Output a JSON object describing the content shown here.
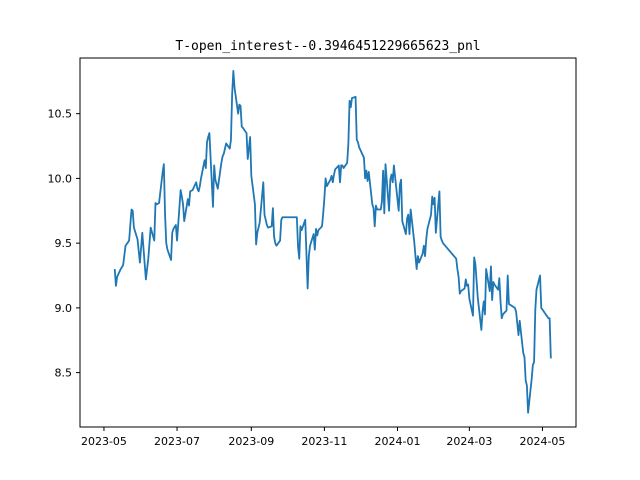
{
  "chart_data": {
    "type": "line",
    "title": "T-open_interest--0.3946451229665623_pnl",
    "xlabel": "",
    "ylabel": "",
    "x_tick_labels": [
      "2023-05",
      "2023-07",
      "2023-09",
      "2023-11",
      "2024-01",
      "2024-03",
      "2024-05"
    ],
    "x_tick_dates": [
      "2023-05-01",
      "2023-07-01",
      "2023-09-01",
      "2023-11-01",
      "2024-01-01",
      "2024-03-01",
      "2024-05-01"
    ],
    "y_tick_labels": [
      "8.5",
      "9.0",
      "9.5",
      "10.0",
      "10.5"
    ],
    "y_tick_values": [
      8.5,
      9.0,
      9.5,
      10.0,
      10.5
    ],
    "xlim": [
      "2023-04-11",
      "2024-05-29"
    ],
    "ylim": [
      8.08,
      10.93
    ],
    "grid": false,
    "line_color": "#1f77b4",
    "series": [
      {
        "x": [
          "2023-05-10",
          "2023-05-11",
          "2023-05-12",
          "2023-05-15",
          "2023-05-17",
          "2023-05-19",
          "2023-05-22",
          "2023-05-24",
          "2023-05-25",
          "2023-05-26",
          "2023-05-29",
          "2023-05-31",
          "2023-06-02",
          "2023-06-05",
          "2023-06-06",
          "2023-06-07",
          "2023-06-09",
          "2023-06-12",
          "2023-06-13",
          "2023-06-14",
          "2023-06-16",
          "2023-06-19",
          "2023-06-20",
          "2023-06-21",
          "2023-06-22",
          "2023-06-23",
          "2023-06-26",
          "2023-06-27",
          "2023-06-28",
          "2023-06-30",
          "2023-07-01",
          "2023-07-04",
          "2023-07-05",
          "2023-07-06",
          "2023-07-07",
          "2023-07-10",
          "2023-07-11",
          "2023-07-12",
          "2023-07-14",
          "2023-07-17",
          "2023-07-18",
          "2023-07-19",
          "2023-07-20",
          "2023-07-21",
          "2023-07-24",
          "2023-07-25",
          "2023-07-26",
          "2023-07-27",
          "2023-07-28",
          "2023-07-31",
          "2023-08-01",
          "2023-08-02",
          "2023-08-04",
          "2023-08-07",
          "2023-08-08",
          "2023-08-09",
          "2023-08-10",
          "2023-08-11",
          "2023-08-14",
          "2023-08-15",
          "2023-08-16",
          "2023-08-17",
          "2023-08-18",
          "2023-08-21",
          "2023-08-22",
          "2023-08-23",
          "2023-08-24",
          "2023-08-25",
          "2023-08-28",
          "2023-08-29",
          "2023-08-31",
          "2023-09-01",
          "2023-09-04",
          "2023-09-05",
          "2023-09-06",
          "2023-09-08",
          "2023-09-11",
          "2023-09-12",
          "2023-09-13",
          "2023-09-14",
          "2023-09-15",
          "2023-09-18",
          "2023-09-19",
          "2023-09-20",
          "2023-09-21",
          "2023-09-22",
          "2023-09-25",
          "2023-09-26",
          "2023-09-27",
          "2023-10-09",
          "2023-10-10",
          "2023-10-11",
          "2023-10-12",
          "2023-10-13",
          "2023-10-16",
          "2023-10-17",
          "2023-10-18",
          "2023-10-19",
          "2023-10-20",
          "2023-10-23",
          "2023-10-24",
          "2023-10-25",
          "2023-10-26",
          "2023-10-27",
          "2023-10-30",
          "2023-10-31",
          "2023-11-01",
          "2023-11-02",
          "2023-11-03",
          "2023-11-06",
          "2023-11-07",
          "2023-11-08",
          "2023-11-09",
          "2023-11-10",
          "2023-11-13",
          "2023-11-14",
          "2023-11-15",
          "2023-11-16",
          "2023-11-17",
          "2023-11-20",
          "2023-11-21",
          "2023-11-22",
          "2023-11-23",
          "2023-11-24",
          "2023-11-27",
          "2023-11-28",
          "2023-11-29",
          "2023-11-30",
          "2023-12-01",
          "2023-12-04",
          "2023-12-05",
          "2023-12-06",
          "2023-12-07",
          "2023-12-08",
          "2023-12-11",
          "2023-12-12",
          "2023-12-13",
          "2023-12-14",
          "2023-12-15",
          "2023-12-18",
          "2023-12-19",
          "2023-12-20",
          "2023-12-21",
          "2023-12-22",
          "2023-12-25",
          "2023-12-26",
          "2023-12-27",
          "2023-12-28",
          "2023-12-29",
          "2024-01-02",
          "2024-01-03",
          "2024-01-04",
          "2024-01-05",
          "2024-01-08",
          "2024-01-09",
          "2024-01-10",
          "2024-01-11",
          "2024-01-12",
          "2024-01-15",
          "2024-01-16",
          "2024-01-17",
          "2024-01-18",
          "2024-01-19",
          "2024-01-22",
          "2024-01-23",
          "2024-01-24",
          "2024-01-25",
          "2024-01-26",
          "2024-01-29",
          "2024-01-30",
          "2024-01-31",
          "2024-02-01",
          "2024-02-02",
          "2024-02-05",
          "2024-02-06",
          "2024-02-07",
          "2024-02-08",
          "2024-02-19",
          "2024-02-20",
          "2024-02-21",
          "2024-02-22",
          "2024-02-23",
          "2024-02-26",
          "2024-02-27",
          "2024-02-28",
          "2024-02-29",
          "2024-03-01",
          "2024-03-04",
          "2024-03-05",
          "2024-03-06",
          "2024-03-07",
          "2024-03-08",
          "2024-03-11",
          "2024-03-12",
          "2024-03-13",
          "2024-03-14",
          "2024-03-15",
          "2024-03-18",
          "2024-03-19",
          "2024-03-20",
          "2024-03-21",
          "2024-03-22",
          "2024-03-25",
          "2024-03-26",
          "2024-03-27",
          "2024-03-28",
          "2024-03-29",
          "2024-04-01",
          "2024-04-02",
          "2024-04-03",
          "2024-04-08",
          "2024-04-09",
          "2024-04-10",
          "2024-04-11",
          "2024-04-12",
          "2024-04-15",
          "2024-04-16",
          "2024-04-17",
          "2024-04-18",
          "2024-04-19",
          "2024-04-22",
          "2024-04-23",
          "2024-04-24",
          "2024-04-25",
          "2024-04-26",
          "2024-04-29",
          "2024-04-30",
          "2024-05-06",
          "2024-05-07",
          "2024-05-08"
        ],
        "y": [
          9.3,
          9.17,
          9.24,
          9.3,
          9.33,
          9.48,
          9.52,
          9.76,
          9.75,
          9.62,
          9.53,
          9.35,
          9.58,
          9.22,
          9.3,
          9.38,
          9.62,
          9.52,
          9.81,
          9.8,
          9.81,
          10.05,
          10.11,
          9.72,
          9.5,
          9.45,
          9.37,
          9.58,
          9.61,
          9.64,
          9.52,
          9.91,
          9.86,
          9.8,
          9.67,
          9.84,
          9.79,
          9.9,
          9.91,
          9.97,
          9.92,
          9.9,
          9.94,
          10.0,
          10.14,
          10.08,
          10.28,
          10.32,
          10.35,
          9.78,
          10.1,
          9.99,
          9.92,
          10.12,
          10.17,
          10.19,
          10.23,
          10.27,
          10.23,
          10.3,
          10.65,
          10.83,
          10.7,
          10.5,
          10.57,
          10.56,
          10.4,
          10.39,
          10.35,
          10.15,
          10.32,
          10.02,
          9.8,
          9.49,
          9.58,
          9.66,
          9.97,
          9.72,
          9.68,
          9.64,
          9.62,
          9.63,
          9.77,
          9.55,
          9.5,
          9.48,
          9.52,
          9.68,
          9.7,
          9.7,
          9.47,
          9.38,
          9.63,
          9.6,
          9.68,
          9.42,
          9.15,
          9.4,
          9.48,
          9.57,
          9.45,
          9.61,
          9.56,
          9.6,
          9.63,
          9.73,
          9.85,
          10.0,
          9.94,
          9.99,
          10.02,
          9.97,
          10.03,
          10.07,
          10.1,
          9.97,
          10.1,
          10.1,
          10.08,
          10.12,
          10.27,
          10.6,
          10.55,
          10.62,
          10.63,
          10.3,
          10.28,
          10.24,
          10.22,
          10.16,
          10.0,
          10.06,
          9.98,
          10.05,
          9.8,
          9.77,
          9.63,
          9.79,
          9.76,
          9.76,
          9.82,
          10.06,
          9.73,
          10.11,
          9.75,
          9.99,
          10.03,
          9.97,
          10.1,
          9.75,
          9.95,
          9.99,
          9.67,
          9.57,
          9.69,
          9.72,
          9.57,
          9.76,
          9.51,
          9.4,
          9.3,
          9.4,
          9.35,
          9.42,
          9.48,
          9.4,
          9.53,
          9.61,
          9.72,
          9.86,
          9.8,
          9.85,
          9.58,
          9.9,
          9.55,
          9.52,
          9.5,
          9.38,
          9.3,
          9.24,
          9.11,
          9.13,
          9.15,
          9.22,
          9.17,
          9.18,
          9.07,
          8.94,
          9.39,
          9.34,
          9.21,
          9.08,
          8.83,
          8.97,
          9.05,
          8.95,
          9.3,
          9.13,
          9.32,
          9.06,
          9.2,
          9.18,
          9.14,
          9.23,
          9.05,
          8.92,
          8.95,
          8.98,
          9.25,
          9.03,
          9.0,
          8.97,
          8.88,
          8.79,
          8.9,
          8.65,
          8.62,
          8.44,
          8.4,
          8.19,
          8.45,
          8.56,
          8.58,
          8.98,
          9.14,
          9.25,
          9.0,
          8.92,
          8.92,
          8.61
        ]
      }
    ]
  }
}
